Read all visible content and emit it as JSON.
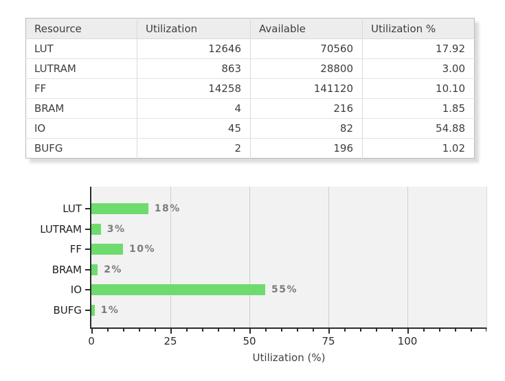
{
  "table": {
    "headers": [
      "Resource",
      "Utilization",
      "Available",
      "Utilization %"
    ],
    "rows": [
      {
        "resource": "LUT",
        "utilization": "12646",
        "available": "70560",
        "percent": "17.92"
      },
      {
        "resource": "LUTRAM",
        "utilization": "863",
        "available": "28800",
        "percent": "3.00"
      },
      {
        "resource": "FF",
        "utilization": "14258",
        "available": "141120",
        "percent": "10.10"
      },
      {
        "resource": "BRAM",
        "utilization": "4",
        "available": "216",
        "percent": "1.85"
      },
      {
        "resource": "IO",
        "utilization": "45",
        "available": "82",
        "percent": "54.88"
      },
      {
        "resource": "BUFG",
        "utilization": "2",
        "available": "196",
        "percent": "1.02"
      }
    ]
  },
  "chart_data": {
    "type": "bar",
    "orientation": "horizontal",
    "title": "",
    "categories": [
      "LUT",
      "LUTRAM",
      "FF",
      "BRAM",
      "IO",
      "BUFG"
    ],
    "values": [
      18,
      3,
      10,
      2,
      55,
      1
    ],
    "value_labels": [
      "18%",
      "3%",
      "10%",
      "2%",
      "55%",
      "1%"
    ],
    "xlabel": "Utilization (%)",
    "ylabel": "",
    "xlim": [
      0,
      125
    ],
    "x_major_ticks": [
      0,
      25,
      50,
      75,
      100
    ],
    "x_minor_tick_step": 5,
    "grid": true,
    "legend": false,
    "bar_color": "#6edb6e",
    "plot_bg": "#f2f2f2",
    "grid_color": "#cdcdcd"
  },
  "colors": {
    "table_header_bg": "#ededed",
    "table_border": "#d9d9d9",
    "accent_green": "#6edb6e"
  }
}
